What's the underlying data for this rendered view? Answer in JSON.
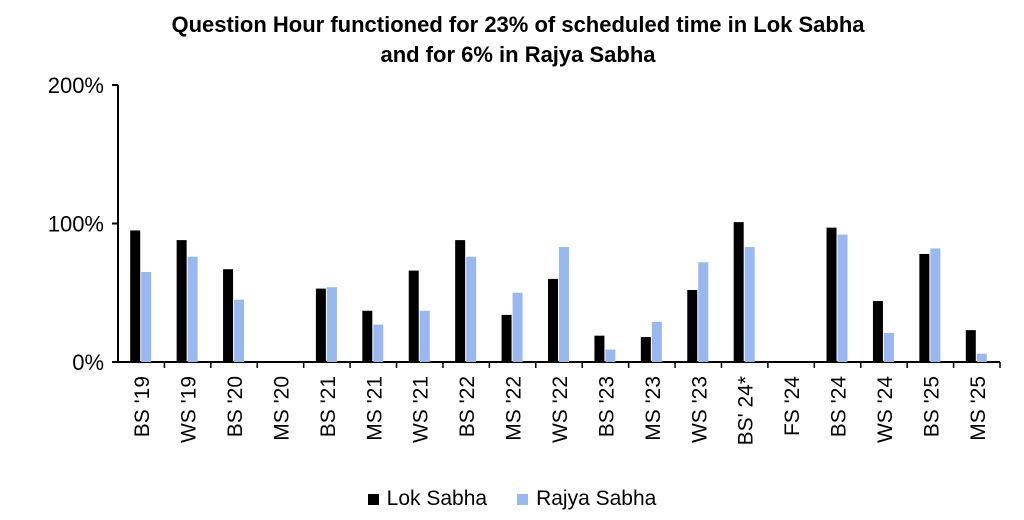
{
  "chart_data": {
    "type": "bar",
    "title": "Question Hour functioned for 23% of scheduled time in Lok Sabha",
    "subtitle": "and for 6% in Rajya Sabha",
    "xlabel": "",
    "ylabel": "",
    "ylim": [
      0,
      200
    ],
    "yticks": [
      0,
      100,
      200
    ],
    "ytick_labels": [
      "0%",
      "100%",
      "200%"
    ],
    "grid": false,
    "legend_position": "bottom",
    "categories": [
      "BS '19",
      "WS '19",
      "BS '20",
      "MS '20",
      "BS '21",
      "MS '21",
      "WS '21",
      "BS '22",
      "MS '22",
      "WS '22",
      "BS '23",
      "MS '23",
      "WS '23",
      "BS' 24*",
      "FS '24",
      "BS '24",
      "WS '24",
      "BS '25",
      "MS '25"
    ],
    "series": [
      {
        "name": "Lok Sabha",
        "color": "#000000",
        "values": [
          95,
          88,
          67,
          0,
          53,
          37,
          66,
          88,
          34,
          60,
          19,
          18,
          52,
          101,
          0,
          97,
          44,
          78,
          23
        ]
      },
      {
        "name": "Rajya Sabha",
        "color": "#99b8f0",
        "values": [
          65,
          76,
          45,
          0,
          54,
          27,
          37,
          76,
          50,
          83,
          9,
          29,
          72,
          83,
          0,
          92,
          21,
          82,
          6
        ]
      }
    ]
  }
}
